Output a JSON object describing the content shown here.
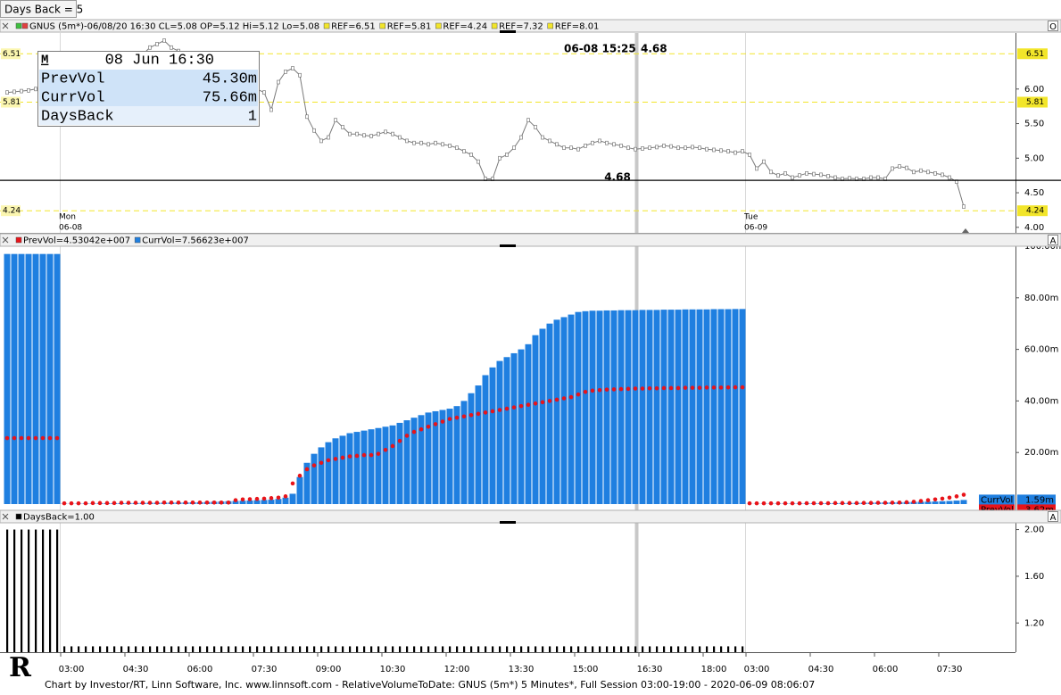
{
  "toolbar": {
    "days_back_button": "Days Back = 5"
  },
  "logo": "R",
  "footer": "Chart by Investor/RT, Linn Software, Inc. www.linnsoft.com - RelativeVolumeToDate: GNUS (5m*) 5 Minutes*, Full Session 03:00-19:00 - 2020-06-09 08:06:07",
  "time_axis": {
    "labels": [
      "03:00",
      "04:30",
      "06:00",
      "07:30",
      "09:00",
      "10:30",
      "12:00",
      "13:30",
      "15:00",
      "16:30",
      "18:00",
      "03:00",
      "04:30",
      "06:00",
      "07:30"
    ]
  },
  "info_box": {
    "mode": "M",
    "date": "08 Jun 16:30",
    "rows": [
      [
        "PrevVol",
        "45.30m"
      ],
      [
        "CurrVol",
        "75.66m"
      ],
      [
        "DaysBack",
        "1"
      ]
    ]
  },
  "chart_data": [
    {
      "type": "line",
      "header": "GNUS (5m*)-06/08/20 16:30 CL=5.08 OP=5.12 Hi=5.12 Lo=5.08",
      "ref_headers": [
        "REF=6.51",
        "REF=5.81",
        "REF=4.24",
        "REF=7.32",
        "REF=8.01"
      ],
      "corner_button": "O",
      "color": "#7a7a7a",
      "values": [
        5.95,
        5.96,
        5.97,
        5.98,
        6.0,
        6.01,
        6.02,
        6.03,
        6.05,
        6.08,
        6.1,
        6.12,
        6.1,
        6.15,
        6.2,
        6.25,
        6.3,
        6.35,
        6.4,
        6.5,
        6.6,
        6.65,
        6.7,
        6.6,
        6.55,
        6.5,
        6.45,
        6.4,
        6.35,
        6.3,
        6.25,
        6.2,
        6.15,
        6.1,
        6.05,
        6.0,
        5.95,
        5.7,
        6.1,
        6.25,
        6.3,
        6.2,
        5.6,
        5.4,
        5.25,
        5.3,
        5.55,
        5.45,
        5.35,
        5.35,
        5.33,
        5.32,
        5.35,
        5.38,
        5.35,
        5.3,
        5.25,
        5.22,
        5.22,
        5.2,
        5.22,
        5.2,
        5.18,
        5.15,
        5.1,
        5.05,
        4.95,
        4.7,
        4.7,
        5.0,
        5.05,
        5.15,
        5.3,
        5.55,
        5.45,
        5.3,
        5.25,
        5.2,
        5.15,
        5.15,
        5.13,
        5.18,
        5.22,
        5.25,
        5.22,
        5.2,
        5.18,
        5.15,
        5.13,
        5.14,
        5.15,
        5.16,
        5.18,
        5.17,
        5.15,
        5.15,
        5.16,
        5.15,
        5.13,
        5.12,
        5.11,
        5.1,
        5.08,
        5.1,
        5.05,
        4.85,
        4.95,
        4.8,
        4.75,
        4.78,
        4.72,
        4.75,
        4.78,
        4.77,
        4.76,
        4.74,
        4.72,
        4.7,
        4.71,
        4.7,
        4.7,
        4.72,
        4.72,
        4.7,
        4.85,
        4.88,
        4.86,
        4.8,
        4.82,
        4.8,
        4.78,
        4.76,
        4.72,
        4.66,
        4.3
      ],
      "ylim": [
        3.92,
        6.81
      ],
      "yticks": [
        {
          "value": 4,
          "label": "4.00"
        },
        {
          "value": 4.5,
          "label": "4.50"
        },
        {
          "value": 5,
          "label": "5.00"
        },
        {
          "value": 5.5,
          "label": "5.50"
        },
        {
          "value": 6,
          "label": "6.00"
        }
      ],
      "ref_lines": [
        6.51,
        5.81,
        4.24
      ],
      "ref_color": "#f2e52a",
      "crosshair": {
        "label": "06-08 15:25",
        "value": 4.68
      },
      "day_labels": [
        {
          "day": "Mon",
          "date": "06-08"
        },
        {
          "day": "Tue",
          "date": "06-09"
        }
      ]
    },
    {
      "type": "bar",
      "corner_button": "A",
      "series": [
        {
          "name": "CurrVol",
          "color": "#1f7fe0",
          "style": "bars",
          "header": "CurrVol=7.56623e+007",
          "last_label": "1.59m",
          "values": [
            97,
            97,
            97,
            97,
            97,
            97,
            97,
            97,
            0.1,
            0.1,
            0.15,
            0.2,
            0.2,
            0.25,
            0.3,
            0.3,
            0.35,
            0.4,
            0.4,
            0.45,
            0.5,
            0.5,
            0.55,
            0.6,
            0.6,
            0.65,
            0.7,
            0.7,
            0.8,
            0.9,
            1.0,
            1.1,
            1.2,
            1.3,
            1.4,
            1.5,
            1.6,
            1.7,
            2.0,
            2.5,
            4.0,
            10.5,
            16.0,
            19.5,
            22.0,
            24.0,
            25.5,
            26.5,
            27.5,
            28.0,
            28.5,
            29.0,
            29.5,
            30.0,
            30.5,
            31.5,
            32.5,
            33.5,
            34.5,
            35.5,
            36.0,
            36.5,
            37.0,
            38.0,
            40.0,
            43.0,
            46.0,
            50.0,
            53.0,
            55.5,
            57.0,
            58.5,
            60.0,
            62.0,
            65.5,
            68.0,
            70.0,
            71.5,
            72.5,
            73.5,
            74.5,
            74.8,
            75.0,
            75.0,
            75.1,
            75.1,
            75.2,
            75.2,
            75.2,
            75.3,
            75.3,
            75.3,
            75.4,
            75.4,
            75.4,
            75.5,
            75.5,
            75.5,
            75.5,
            75.6,
            75.6,
            75.6,
            75.66,
            75.66,
            0.05,
            0.08,
            0.1,
            0.12,
            0.15,
            0.18,
            0.2,
            0.22,
            0.25,
            0.28,
            0.3,
            0.33,
            0.36,
            0.4,
            0.43,
            0.46,
            0.5,
            0.55,
            0.6,
            0.65,
            0.7,
            0.75,
            0.8,
            0.85,
            0.9,
            0.95,
            1.0,
            1.1,
            1.2,
            1.35,
            1.59
          ]
        },
        {
          "name": "PrevVol",
          "color": "#e8141a",
          "style": "dots",
          "header": "PrevVol=4.53042e+007",
          "last_label": "3.62m",
          "values": [
            25.6,
            25.6,
            25.6,
            25.6,
            25.6,
            25.6,
            25.6,
            25.6,
            0.3,
            0.3,
            0.3,
            0.3,
            0.4,
            0.4,
            0.4,
            0.4,
            0.5,
            0.5,
            0.5,
            0.5,
            0.5,
            0.5,
            0.6,
            0.6,
            0.6,
            0.6,
            0.6,
            0.6,
            0.6,
            0.6,
            0.6,
            0.6,
            1.5,
            1.8,
            1.9,
            2.0,
            2.1,
            2.3,
            2.5,
            3.0,
            8.0,
            11.0,
            13.5,
            15.0,
            16.0,
            17.0,
            17.5,
            18.0,
            18.5,
            18.7,
            19.0,
            19.0,
            19.5,
            21.0,
            22.5,
            24.5,
            26.5,
            28.0,
            29.0,
            30.0,
            31.0,
            32.0,
            33.0,
            33.5,
            34.0,
            34.5,
            35.0,
            35.5,
            36.0,
            36.5,
            37.0,
            37.5,
            38.0,
            38.5,
            39.0,
            39.5,
            40.0,
            40.5,
            41.0,
            41.5,
            42.5,
            43.5,
            44.0,
            44.2,
            44.4,
            44.5,
            44.6,
            44.7,
            44.8,
            44.8,
            44.9,
            44.9,
            45.0,
            45.0,
            45.0,
            45.1,
            45.1,
            45.1,
            45.2,
            45.2,
            45.2,
            45.25,
            45.3,
            45.3,
            0.3,
            0.3,
            0.3,
            0.3,
            0.3,
            0.3,
            0.3,
            0.3,
            0.35,
            0.35,
            0.35,
            0.35,
            0.4,
            0.4,
            0.4,
            0.4,
            0.45,
            0.45,
            0.5,
            0.5,
            0.55,
            0.6,
            0.7,
            0.9,
            1.2,
            1.5,
            1.8,
            2.1,
            2.5,
            3.0,
            3.62
          ]
        }
      ],
      "ylim": [
        0,
        100
      ],
      "yticks": [
        {
          "value": 20,
          "label": "20.00m"
        },
        {
          "value": 40,
          "label": "40.00m"
        },
        {
          "value": 60,
          "label": "60.00m"
        },
        {
          "value": 80,
          "label": "80.00m"
        },
        {
          "value": 100,
          "label": "100.00m"
        }
      ]
    },
    {
      "type": "bar",
      "corner_button": "A",
      "series": [
        {
          "name": "DaysBack",
          "color": "#000000",
          "style": "thin",
          "header": "DaysBack=1.00",
          "values": [
            2,
            2,
            2,
            2,
            2,
            2,
            2,
            2,
            1,
            1,
            1,
            1,
            1,
            1,
            1,
            1,
            1,
            1,
            1,
            1,
            1,
            1,
            1,
            1,
            1,
            1,
            1,
            1,
            1,
            1,
            1,
            1,
            1,
            1,
            1,
            1,
            1,
            1,
            1,
            1,
            1,
            1,
            1,
            1,
            1,
            1,
            1,
            1,
            1,
            1,
            1,
            1,
            1,
            1,
            1,
            1,
            1,
            1,
            1,
            1,
            1,
            1,
            1,
            1,
            1,
            1,
            1,
            1,
            1,
            1,
            1,
            1,
            1,
            1,
            1,
            1,
            1,
            1,
            1,
            1,
            1,
            1,
            1,
            1,
            1,
            1,
            1,
            1,
            1,
            1,
            1,
            1,
            1,
            1,
            1,
            1,
            1,
            1,
            1,
            1,
            1,
            1,
            1,
            1,
            null,
            null,
            null,
            null,
            null,
            null,
            null,
            null,
            null,
            null,
            null,
            null,
            null,
            null,
            null,
            null,
            null,
            null,
            null,
            null,
            null,
            null,
            null,
            null,
            null,
            null,
            null,
            null,
            null,
            null,
            null
          ]
        }
      ],
      "ylim": [
        0.95,
        2.05
      ],
      "yticks": [
        {
          "value": 1.2,
          "label": "1.20"
        },
        {
          "value": 1.6,
          "label": "1.60"
        },
        {
          "value": 2,
          "label": "2.00"
        }
      ]
    }
  ]
}
